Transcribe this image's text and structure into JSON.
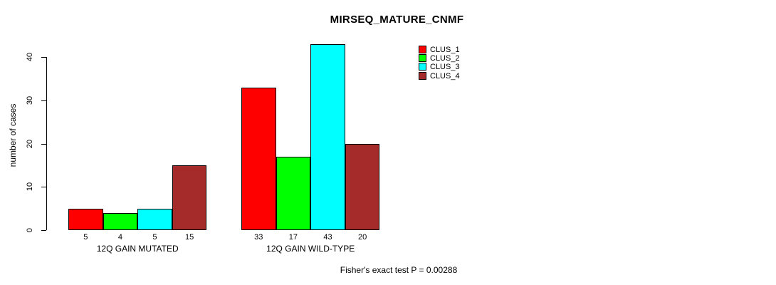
{
  "chart_data": {
    "type": "bar",
    "title": "MIRSEQ_MATURE_CNMF",
    "xlabel": "",
    "ylabel": "number of cases",
    "categories": [
      "12Q GAIN MUTATED",
      "12Q GAIN WILD-TYPE"
    ],
    "series": [
      {
        "name": "CLUS_1",
        "color": "#FF0000",
        "values": [
          5,
          33
        ]
      },
      {
        "name": "CLUS_2",
        "color": "#00FF00",
        "values": [
          4,
          17
        ]
      },
      {
        "name": "CLUS_3",
        "color": "#00FFFF",
        "values": [
          5,
          43
        ]
      },
      {
        "name": "CLUS_4",
        "color": "#A52A2A",
        "values": [
          15,
          20
        ]
      }
    ],
    "yticks": [
      0,
      10,
      20,
      30,
      40
    ],
    "ylim": [
      0,
      43
    ],
    "bar_value_labels": [
      [
        5,
        4,
        5,
        15
      ],
      [
        33,
        17,
        43,
        20
      ]
    ],
    "legend_entries": [
      "CLUS_1",
      "CLUS_2",
      "CLUS_3",
      "CLUS_4"
    ],
    "legend_position": "top-right",
    "grid": false,
    "annotation": "Fisher's exact test P = 0.00288"
  }
}
